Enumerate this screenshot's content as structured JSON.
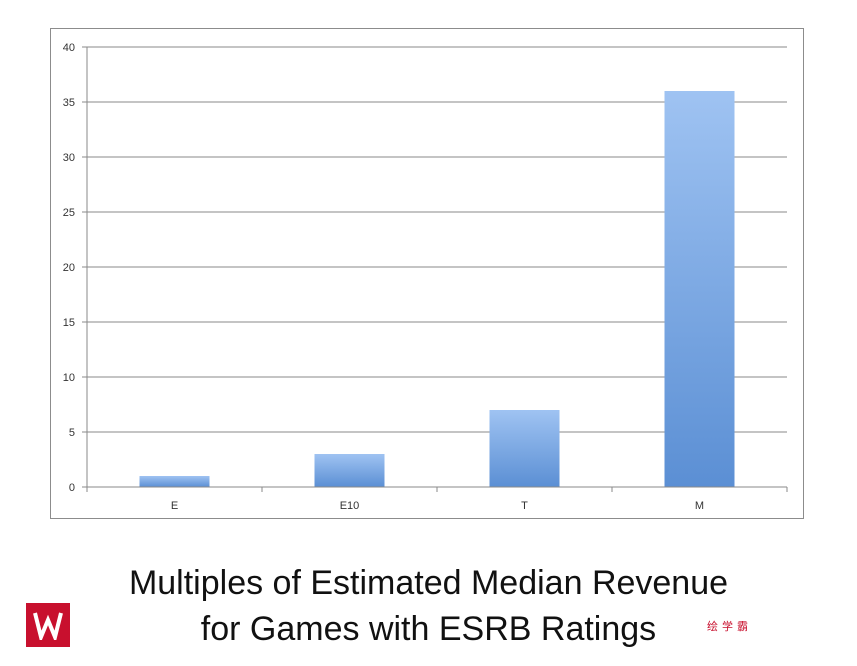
{
  "chart_data": {
    "type": "bar",
    "categories": [
      "E",
      "E10",
      "T",
      "M"
    ],
    "values": [
      1,
      3,
      7,
      36
    ],
    "ylim": [
      0,
      40
    ],
    "yticks": [
      0,
      5,
      10,
      15,
      20,
      25,
      30,
      35,
      40
    ],
    "grid": true,
    "legend": "none",
    "bar_color_top": "#9fc3f2",
    "bar_color_bottom": "#5b8fd4"
  },
  "caption": {
    "line1": "Multiples of Estimated Median Revenue",
    "line2": "for Games with ESRB Ratings"
  },
  "watermark": {
    "text": "绘学霸",
    "logo_icon": "w-logo-icon",
    "logo_color": "#c8102e"
  }
}
